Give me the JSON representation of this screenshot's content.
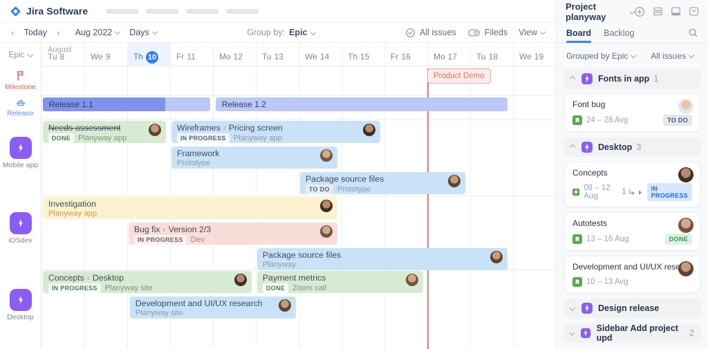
{
  "colors": {
    "accent_blue": "#2f80ed",
    "epic_purple": "#8b5cf6",
    "milestone_red": "#e25b50",
    "release_blue": "#5b8bf0",
    "release_bar_dark": "#8092ee",
    "release_bar_light": "#bcc8f8",
    "bar_green": "#d7ebd2",
    "bar_blue": "#c9e2f8",
    "bar_yellow": "#fcf2cf",
    "bar_pink": "#f8ddd8"
  },
  "topbar": {
    "logo": "Jira Software"
  },
  "toolbar": {
    "today": "Today",
    "month": "Aug 2022",
    "scale": "Days",
    "group_by_label": "Group by:",
    "group_by_value": "Epic",
    "all_issues": "All issues",
    "fields": "Fileds",
    "view": "View"
  },
  "timeline": {
    "month": "August",
    "epic_header": "Epic",
    "days": [
      {
        "wd": "Tu",
        "n": "8"
      },
      {
        "wd": "We",
        "n": "9"
      },
      {
        "wd": "Th",
        "n": "10",
        "today": true
      },
      {
        "wd": "Fr",
        "n": "11"
      },
      {
        "wd": "Mo",
        "n": "12"
      },
      {
        "wd": "Tu",
        "n": "13"
      },
      {
        "wd": "We",
        "n": "14"
      },
      {
        "wd": "Th",
        "n": "15"
      },
      {
        "wd": "Fr",
        "n": "16"
      },
      {
        "wd": "Mo",
        "n": "17"
      },
      {
        "wd": "Tu",
        "n": "18"
      },
      {
        "wd": "We",
        "n": "19"
      }
    ],
    "groups": [
      {
        "label": "Milestone",
        "type": "milestone"
      },
      {
        "label": "Release",
        "type": "release"
      },
      {
        "label": "Mobile app",
        "type": "epic"
      },
      {
        "label": "iOSdev",
        "type": "epic"
      },
      {
        "label": "Desktop",
        "type": "epic"
      }
    ],
    "milestone": {
      "label": "Product Demo",
      "col": 9
    },
    "releases": [
      {
        "label": "Release 1.1",
        "start": 0.03,
        "end": 3.94,
        "progress": 0.73
      },
      {
        "label": "Release 1.2",
        "start": 4.06,
        "end": 10.87,
        "progress": 0
      }
    ],
    "bars": [
      {
        "group": 2,
        "lane": 0,
        "title": "Needs assessment",
        "strike": true,
        "badge": "DONE",
        "subtitle": "Planyway app",
        "color": "green",
        "start": 0.03,
        "end": 2.9,
        "avatar": 1
      },
      {
        "group": 2,
        "lane": 0,
        "title": "Wireframes ‹ Pricing screen",
        "badge": "IN PROGRESS",
        "subtitle": "Planyway app",
        "color": "blue",
        "start": 3.03,
        "end": 7.9,
        "avatar": 2
      },
      {
        "group": 2,
        "lane": 1,
        "title": "Framework",
        "subtitle": "Prototype",
        "color": "blue",
        "start": 3.03,
        "end": 6.9,
        "avatar": 3
      },
      {
        "group": 2,
        "lane": 2,
        "title": "Package source files",
        "badge": "TO DO",
        "subtitle": "Prototype",
        "color": "blue",
        "start": 6.03,
        "end": 9.89,
        "avatar": 1
      },
      {
        "group": 3,
        "lane": 0,
        "title": "Investigation",
        "subtitle": "Planyway app",
        "color": "yellow",
        "start": 0.03,
        "end": 6.9,
        "avatar": 2
      },
      {
        "group": 3,
        "lane": 1,
        "title": "Bug fix ‹ Version 2/3",
        "badge": "IN PROGRESS",
        "subtitle": "Dev",
        "color": "pink",
        "start": 2.03,
        "end": 6.9,
        "avatar": 3
      },
      {
        "group": 3,
        "lane": 2,
        "title": "Package source files",
        "subtitle": "Planyway",
        "color": "blue",
        "start": 5.03,
        "end": 10.87,
        "avatar": 1
      },
      {
        "group": 4,
        "lane": 0,
        "title": "Concepts ‹ Desktop",
        "badge": "IN PROGRESS",
        "subtitle": "Planyway site",
        "color": "green",
        "start": 0.03,
        "end": 4.9,
        "avatar": 2
      },
      {
        "group": 4,
        "lane": 0,
        "title": "Payment metrics",
        "badge": "DONE",
        "subtitle": "Zoom call",
        "color": "green",
        "start": 5.03,
        "end": 8.9,
        "avatar": 3
      },
      {
        "group": 4,
        "lane": 1,
        "title": "Development and UI/UX research",
        "subtitle": "Planyway site",
        "color": "blue",
        "start": 2.06,
        "end": 5.94,
        "avatar": 1
      }
    ]
  },
  "sidebar": {
    "project": "Project planyway",
    "tabs": [
      {
        "label": "Board",
        "active": true
      },
      {
        "label": "Backlog",
        "active": false
      }
    ],
    "filters": [
      {
        "label": "Grouped by Epic"
      },
      {
        "label": "All issues"
      }
    ],
    "sections": [
      {
        "title": "Fonts in app",
        "count": "1",
        "expanded": true,
        "cards": [
          {
            "title": "Font bug",
            "date": "24 – 28 Avg",
            "badge": "TO DO",
            "badge_type": "todo",
            "avatar": 4
          }
        ]
      },
      {
        "title": "Desktop",
        "count": "3",
        "expanded": true,
        "cards": [
          {
            "title": "Concepts",
            "date": "08 – 12 Aug",
            "extra": "1",
            "badge": "IN PROGRESS",
            "badge_type": "inprogress",
            "avatar": 2
          },
          {
            "title": "Autotests",
            "date": "13 – 16 Aug",
            "badge": "DONE",
            "badge_type": "done",
            "avatar": 3
          },
          {
            "title": "Development and UI/UX research",
            "date": "10 – 13 Avg",
            "avatar": 1
          }
        ]
      },
      {
        "title": "Design release",
        "count": "",
        "expanded": false,
        "cards": []
      },
      {
        "title": "Sidebar Add project upd",
        "count": "2",
        "expanded": false,
        "cards": []
      }
    ]
  }
}
